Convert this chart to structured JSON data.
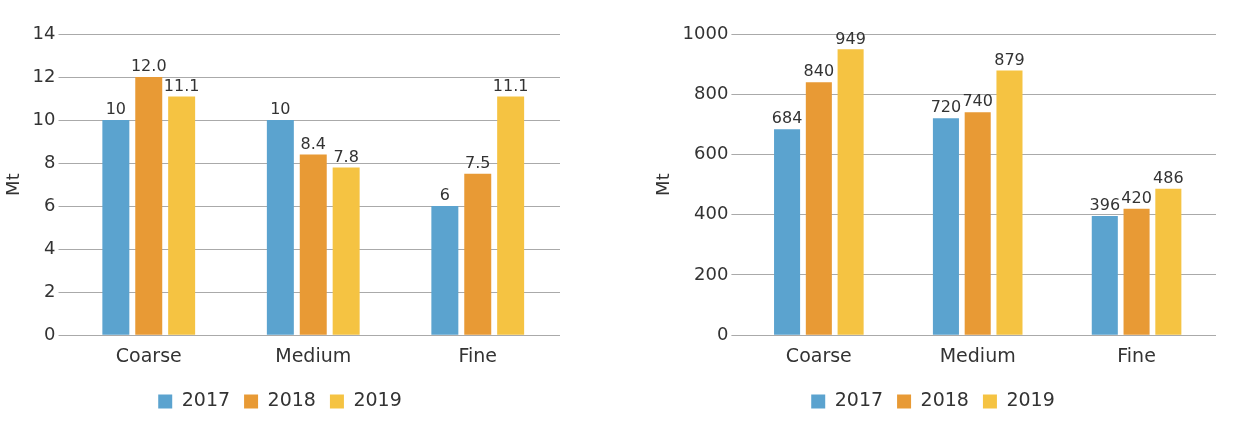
{
  "chart_data": [
    {
      "type": "bar",
      "ylabel": "Mt",
      "categories": [
        "Coarse",
        "Medium",
        "Fine"
      ],
      "series": [
        {
          "name": "2017",
          "color": "#5ba3cf",
          "values": [
            10,
            10,
            6
          ],
          "value_labels": [
            "10",
            "10",
            "6"
          ]
        },
        {
          "name": "2018",
          "color": "#e89a35",
          "values": [
            12.0,
            8.4,
            7.5
          ],
          "value_labels": [
            "12.0",
            "8.4",
            "7.5"
          ]
        },
        {
          "name": "2019",
          "color": "#f5c342",
          "values": [
            11.1,
            7.8,
            11.1
          ],
          "value_labels": [
            "11.1",
            "7.8",
            "11.1"
          ]
        }
      ],
      "ylim": [
        0,
        14
      ],
      "yticks": [
        0,
        2,
        4,
        6,
        8,
        10,
        12,
        14
      ],
      "grid": "y",
      "legend": "bottom"
    },
    {
      "type": "bar",
      "ylabel": "Mt",
      "categories": [
        "Coarse",
        "Medium",
        "Fine"
      ],
      "series": [
        {
          "name": "2017",
          "color": "#5ba3cf",
          "values": [
            684,
            720,
            396
          ]
        },
        {
          "name": "2018",
          "color": "#e89a35",
          "values": [
            840,
            740,
            420
          ]
        },
        {
          "name": "2019",
          "color": "#f5c342",
          "values": [
            949,
            879,
            486
          ]
        }
      ],
      "ylim": [
        0,
        1000
      ],
      "yticks": [
        0,
        200,
        400,
        600,
        800,
        1000
      ],
      "grid": "y",
      "legend": "bottom",
      "data_labels": true
    }
  ]
}
